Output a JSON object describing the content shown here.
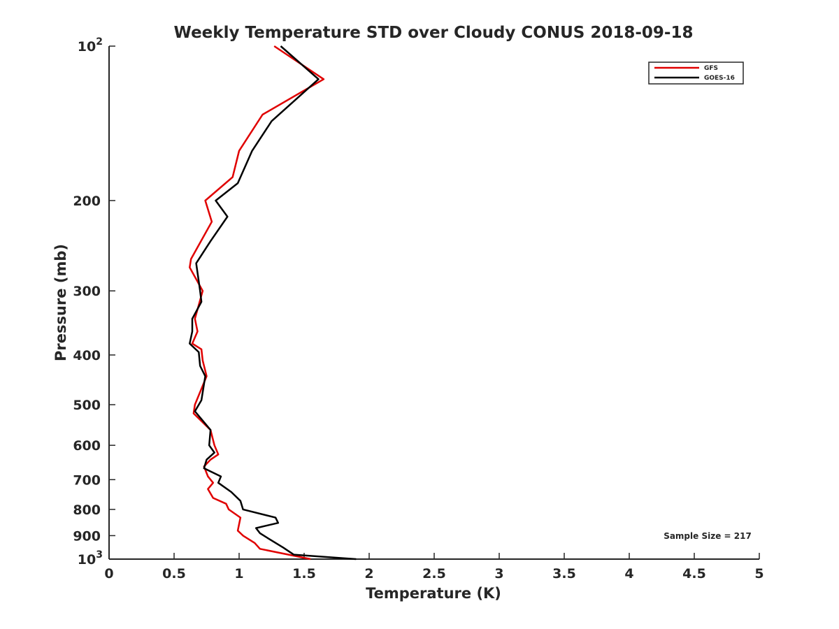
{
  "chart_data": {
    "type": "line",
    "title": "Weekly Temperature STD over Cloudy CONUS 2018-09-18",
    "xlabel": "Temperature (K)",
    "ylabel": "Pressure (mb)",
    "xlim": [
      0,
      5
    ],
    "ylim": [
      100,
      1000
    ],
    "yscale": "log",
    "y_reversed": true,
    "grid": false,
    "legend_position": "top-right",
    "xticks": [
      {
        "v": 0,
        "label": "0"
      },
      {
        "v": 0.5,
        "label": "0.5"
      },
      {
        "v": 1,
        "label": "1"
      },
      {
        "v": 1.5,
        "label": "1.5"
      },
      {
        "v": 2,
        "label": "2"
      },
      {
        "v": 2.5,
        "label": "2.5"
      },
      {
        "v": 3,
        "label": "3"
      },
      {
        "v": 3.5,
        "label": "3.5"
      },
      {
        "v": 4,
        "label": "4"
      },
      {
        "v": 4.5,
        "label": "4.5"
      },
      {
        "v": 5,
        "label": "5"
      }
    ],
    "yticks": [
      {
        "v": 100,
        "base": "10",
        "exp": "2"
      },
      {
        "v": 200,
        "label": "200"
      },
      {
        "v": 300,
        "label": "300"
      },
      {
        "v": 400,
        "label": "400"
      },
      {
        "v": 500,
        "label": "500"
      },
      {
        "v": 600,
        "label": "600"
      },
      {
        "v": 700,
        "label": "700"
      },
      {
        "v": 800,
        "label": "800"
      },
      {
        "v": 900,
        "label": "900"
      },
      {
        "v": 1000,
        "base": "10",
        "exp": "3"
      }
    ],
    "series": [
      {
        "name": "GFS",
        "color": "#e00000",
        "points": [
          [
            1.27,
            100
          ],
          [
            1.65,
            116
          ],
          [
            1.18,
            136
          ],
          [
            1.0,
            160
          ],
          [
            0.95,
            180
          ],
          [
            0.74,
            200
          ],
          [
            0.79,
            220
          ],
          [
            0.63,
            260
          ],
          [
            0.62,
            270
          ],
          [
            0.72,
            300
          ],
          [
            0.66,
            340
          ],
          [
            0.68,
            360
          ],
          [
            0.64,
            380
          ],
          [
            0.71,
            390
          ],
          [
            0.72,
            410
          ],
          [
            0.75,
            440
          ],
          [
            0.66,
            500
          ],
          [
            0.65,
            520
          ],
          [
            0.78,
            560
          ],
          [
            0.81,
            600
          ],
          [
            0.84,
            625
          ],
          [
            0.78,
            640
          ],
          [
            0.73,
            660
          ],
          [
            0.76,
            690
          ],
          [
            0.8,
            710
          ],
          [
            0.76,
            730
          ],
          [
            0.8,
            760
          ],
          [
            0.9,
            780
          ],
          [
            0.92,
            800
          ],
          [
            1.01,
            830
          ],
          [
            0.99,
            880
          ],
          [
            1.03,
            900
          ],
          [
            1.12,
            930
          ],
          [
            1.16,
            955
          ],
          [
            1.38,
            980
          ],
          [
            1.55,
            1000
          ]
        ]
      },
      {
        "name": "GOES-16",
        "color": "#000000",
        "points": [
          [
            1.32,
            100
          ],
          [
            1.61,
            116
          ],
          [
            1.25,
            140
          ],
          [
            1.1,
            160
          ],
          [
            0.99,
            185
          ],
          [
            0.82,
            200
          ],
          [
            0.91,
            215
          ],
          [
            0.78,
            240
          ],
          [
            0.67,
            265
          ],
          [
            0.7,
            300
          ],
          [
            0.71,
            315
          ],
          [
            0.64,
            340
          ],
          [
            0.64,
            360
          ],
          [
            0.62,
            380
          ],
          [
            0.69,
            395
          ],
          [
            0.7,
            420
          ],
          [
            0.74,
            440
          ],
          [
            0.71,
            490
          ],
          [
            0.66,
            515
          ],
          [
            0.78,
            560
          ],
          [
            0.77,
            600
          ],
          [
            0.81,
            620
          ],
          [
            0.75,
            640
          ],
          [
            0.73,
            665
          ],
          [
            0.86,
            690
          ],
          [
            0.84,
            710
          ],
          [
            0.94,
            740
          ],
          [
            1.01,
            770
          ],
          [
            1.03,
            800
          ],
          [
            1.28,
            830
          ],
          [
            1.3,
            850
          ],
          [
            1.13,
            870
          ],
          [
            1.16,
            890
          ],
          [
            1.22,
            910
          ],
          [
            1.34,
            950
          ],
          [
            1.42,
            980
          ],
          [
            1.9,
            1000
          ]
        ]
      }
    ],
    "annotations": [
      {
        "text": "Sample Size = 217"
      }
    ]
  }
}
